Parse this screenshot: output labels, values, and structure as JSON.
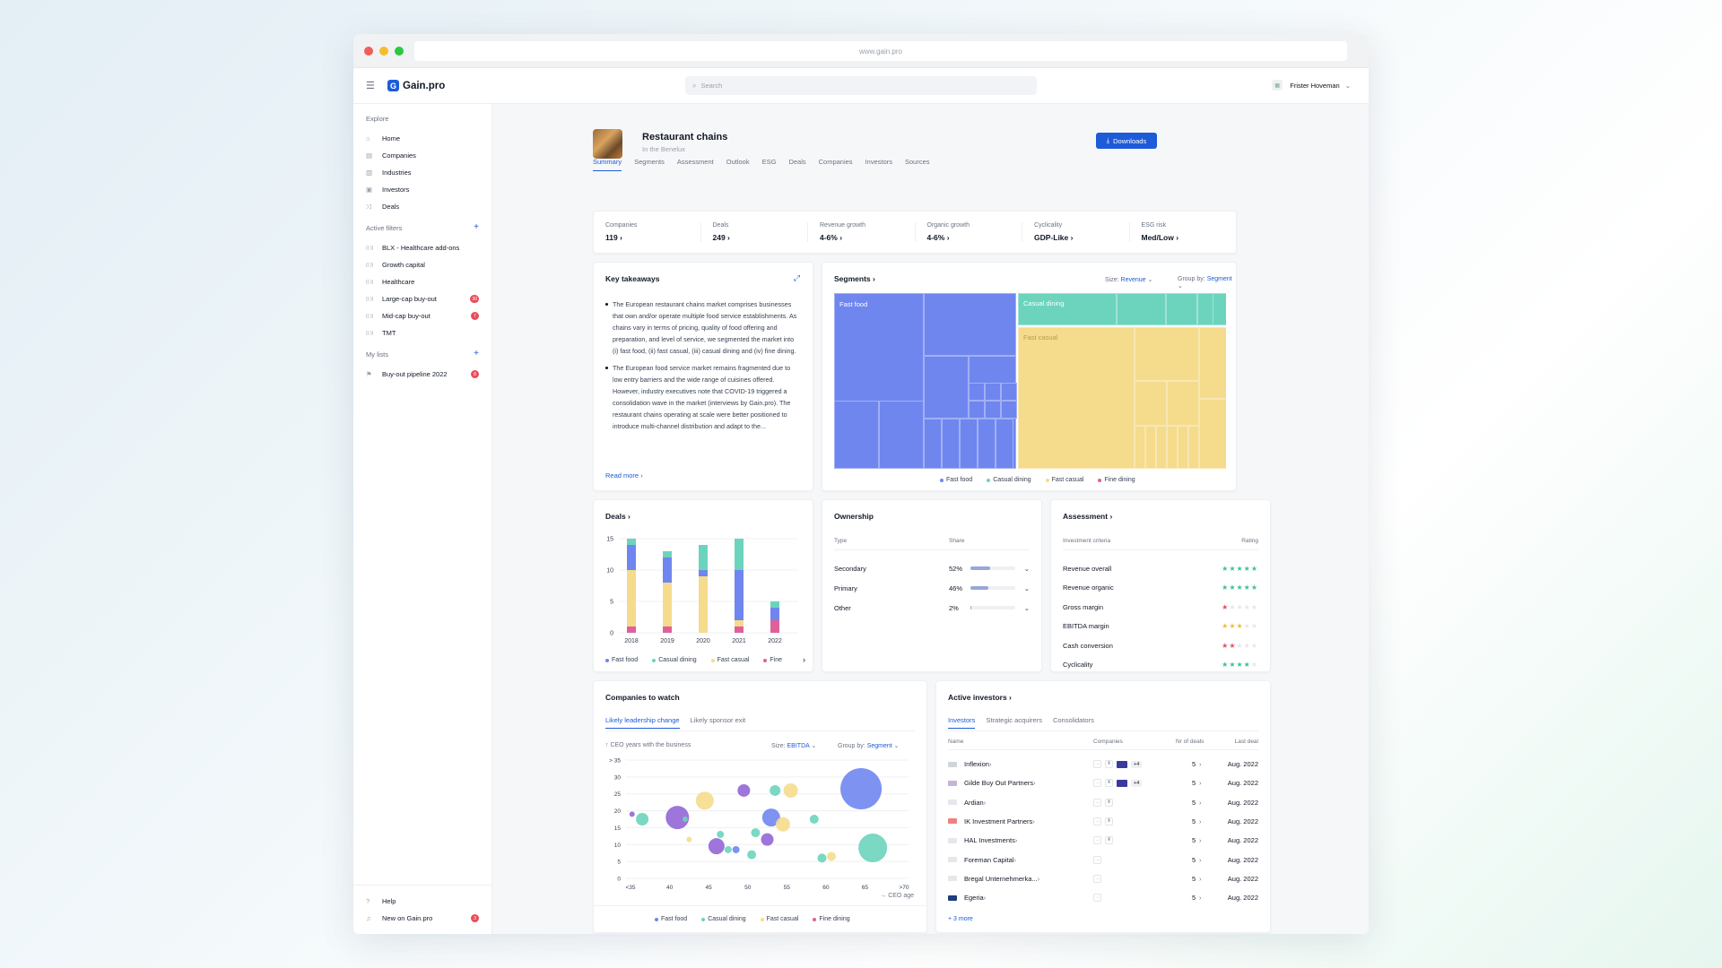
{
  "browser": {
    "url": "www.gain.pro"
  },
  "topbar": {
    "logo": "Gain.pro",
    "search_placeholder": "Search",
    "user": "Frister Hoveman"
  },
  "sidebar": {
    "explore_label": "Explore",
    "explore": [
      {
        "label": "Home",
        "icon": "home-icon"
      },
      {
        "label": "Companies",
        "icon": "building-icon"
      },
      {
        "label": "Industries",
        "icon": "industry-icon"
      },
      {
        "label": "Investors",
        "icon": "briefcase-icon"
      },
      {
        "label": "Deals",
        "icon": "shuffle-icon"
      }
    ],
    "filters_label": "Active filters",
    "filters": [
      {
        "label": "BLX - Healthcare add-ons",
        "badge": ""
      },
      {
        "label": "Growth capital",
        "badge": ""
      },
      {
        "label": "Healthcare",
        "badge": ""
      },
      {
        "label": "Large-cap buy-out",
        "badge": "30"
      },
      {
        "label": "Mid-cap buy-out",
        "badge": "7"
      },
      {
        "label": "TMT",
        "badge": ""
      }
    ],
    "lists_label": "My lists",
    "lists": [
      {
        "label": "Buy-out pipeline 2022",
        "badge": "8"
      }
    ],
    "help": "Help",
    "new": "New on Gain.pro",
    "new_badge": "3"
  },
  "header": {
    "title": "Restaurant chains",
    "subtitle": "In the Benelux",
    "downloads": "Downloads",
    "tabs": [
      "Summary",
      "Segments",
      "Assessment",
      "Outlook",
      "ESG",
      "Deals",
      "Companies",
      "Investors",
      "Sources"
    ]
  },
  "kpis": [
    {
      "label": "Companies",
      "value": "119"
    },
    {
      "label": "Deals",
      "value": "249"
    },
    {
      "label": "Revenue growth",
      "value": "4-6%"
    },
    {
      "label": "Organic growth",
      "value": "4-6%"
    },
    {
      "label": "Cyclicality",
      "value": "GDP-Like"
    },
    {
      "label": "ESG risk",
      "value": "Med/Low"
    }
  ],
  "takeaways": {
    "title": "Key takeaways",
    "read_more": "Read more",
    "items": [
      "The European restaurant chains market comprises businesses that own and/or operate multiple food service establishments. As chains vary in terms of pricing, quality of food offering and preparation, and level of service, we segmented the market into (i) fast food, (ii) fast casual, (iii) casual dining and (iv) fine dining.",
      "The European food service market remains fragmented due to low entry barriers and the wide range of cuisines offered. However, industry executives note that COVID-19 triggered a consolidation wave in the market (interviews by Gain.pro). The restaurant chains operating at scale were better positioned to introduce multi-channel distribution and adapt to the..."
    ]
  },
  "segments": {
    "title": "Segments",
    "size_label": "Size:",
    "size_value": "Revenue",
    "group_label": "Group by:",
    "group_value": "Segment",
    "labels": {
      "fast_food": "Fast food",
      "fast_casual": "Fast casual",
      "casual_dining": "Casual dining"
    },
    "legend": [
      {
        "name": "Fast food",
        "color": "#6f86ef"
      },
      {
        "name": "Casual dining",
        "color": "#6cd4bd"
      },
      {
        "name": "Fast casual",
        "color": "#f5db8c"
      },
      {
        "name": "Fine dining",
        "color": "#e0609a"
      }
    ]
  },
  "colors": {
    "fast_food": "#6f86ef",
    "casual_dining": "#6cd4bd",
    "fast_casual": "#f5db8c",
    "fine_dining": "#e0609a",
    "purple": "#9466d6",
    "accent": "#1d5bd8"
  },
  "chart_data": [
    {
      "type": "bar",
      "title": "Deals",
      "categories": [
        "2018",
        "2019",
        "2020",
        "2021",
        "2022"
      ],
      "ylim": [
        0,
        15
      ],
      "yticks": [
        0,
        5,
        10,
        15
      ],
      "series": [
        {
          "name": "Fast food",
          "values": [
            4,
            4,
            1,
            8,
            2
          ]
        },
        {
          "name": "Casual dining",
          "values": [
            1,
            1,
            4,
            5,
            1
          ]
        },
        {
          "name": "Fast casual",
          "values": [
            9,
            7,
            9,
            1,
            0
          ]
        },
        {
          "name": "Fine dining",
          "values": [
            1,
            1,
            0,
            1,
            2
          ]
        }
      ],
      "legend": [
        "Fast food",
        "Casual dining",
        "Fast casual",
        "Fine"
      ]
    },
    {
      "type": "scatter",
      "title": "Companies to watch",
      "ylabel": "CEO years with the business",
      "xlabel": "CEO age",
      "xticks": [
        "<35",
        "40",
        "45",
        "50",
        "55",
        "60",
        "65",
        ">70"
      ],
      "yticks": [
        "0",
        "5",
        "10",
        "15",
        "20",
        "25",
        "30",
        "> 35"
      ],
      "legend": [
        "Fast food",
        "Casual dining",
        "Fast casual",
        "Fine dining"
      ],
      "points": [
        {
          "x": 35.2,
          "y": 19,
          "r": 3,
          "c": "purple"
        },
        {
          "x": 36.5,
          "y": 17.5,
          "r": 7,
          "c": "casual_dining"
        },
        {
          "x": 41,
          "y": 18,
          "r": 13,
          "c": "purple"
        },
        {
          "x": 42,
          "y": 17.5,
          "r": 3,
          "c": "casual_dining"
        },
        {
          "x": 42.5,
          "y": 11.5,
          "r": 3,
          "c": "fast_casual"
        },
        {
          "x": 44.5,
          "y": 23,
          "r": 10,
          "c": "fast_casual"
        },
        {
          "x": 46,
          "y": 9.5,
          "r": 9,
          "c": "purple"
        },
        {
          "x": 46.5,
          "y": 13,
          "r": 4,
          "c": "casual_dining"
        },
        {
          "x": 47.5,
          "y": 8.5,
          "r": 4,
          "c": "casual_dining"
        },
        {
          "x": 48.5,
          "y": 8.5,
          "r": 4,
          "c": "fast_food"
        },
        {
          "x": 49.5,
          "y": 26,
          "r": 7,
          "c": "purple"
        },
        {
          "x": 50.5,
          "y": 7,
          "r": 5,
          "c": "casual_dining"
        },
        {
          "x": 51,
          "y": 13.5,
          "r": 5,
          "c": "casual_dining"
        },
        {
          "x": 52.5,
          "y": 11.5,
          "r": 7,
          "c": "purple"
        },
        {
          "x": 53,
          "y": 18,
          "r": 10,
          "c": "fast_food"
        },
        {
          "x": 53.5,
          "y": 26,
          "r": 6,
          "c": "casual_dining"
        },
        {
          "x": 54.5,
          "y": 16,
          "r": 8,
          "c": "fast_casual"
        },
        {
          "x": 55.5,
          "y": 26,
          "r": 8,
          "c": "fast_casual"
        },
        {
          "x": 58.5,
          "y": 17.5,
          "r": 5,
          "c": "casual_dining"
        },
        {
          "x": 59.5,
          "y": 6,
          "r": 5,
          "c": "casual_dining"
        },
        {
          "x": 60.7,
          "y": 6.5,
          "r": 5,
          "c": "fast_casual"
        },
        {
          "x": 64.5,
          "y": 26.5,
          "r": 23,
          "c": "fast_food"
        },
        {
          "x": 66,
          "y": 9,
          "r": 16,
          "c": "casual_dining"
        }
      ]
    }
  ],
  "ownership": {
    "title": "Ownership",
    "col_type": "Type",
    "col_share": "Share",
    "rows": [
      {
        "type": "Secondary",
        "share": "52%",
        "fill": 0.52
      },
      {
        "type": "Primary",
        "share": "46%",
        "fill": 0.46
      },
      {
        "type": "Other",
        "share": "2%",
        "fill": 0.02
      }
    ]
  },
  "assessment": {
    "title": "Assessment",
    "col_criteria": "Investment criteria",
    "col_rating": "Rating",
    "rows": [
      {
        "name": "Revenue overall",
        "stars": 5,
        "color": "#3fbf98"
      },
      {
        "name": "Revenue organic",
        "stars": 5,
        "color": "#3fbf98"
      },
      {
        "name": "Gross margin",
        "stars": 1,
        "color": "#ea4b5a"
      },
      {
        "name": "EBITDA margin",
        "stars": 3,
        "color": "#f2b93b"
      },
      {
        "name": "Cash conversion",
        "stars": 2,
        "color": "#ea4b5a"
      },
      {
        "name": "Cyclicality",
        "stars": 4,
        "color": "#3fbf98"
      }
    ]
  },
  "watch": {
    "title": "Companies to watch",
    "tabs": [
      "Likely leadership change",
      "Likely sponsor exit"
    ],
    "size_label": "Size:",
    "size_value": "EBITDA",
    "group_label": "Group by:",
    "group_value": "Segment",
    "y_title": "CEO years with the business",
    "x_title": "CEO age"
  },
  "investors": {
    "title": "Active investors",
    "tabs": [
      "Investors",
      "Strategic acquirers",
      "Consolidators"
    ],
    "cols": {
      "name": "Name",
      "companies": "Companies",
      "deals": "Nr of deals",
      "last": "Last deal"
    },
    "rows": [
      {
        "name": "Inflexion",
        "deals": "5",
        "last": "Aug. 2022",
        "more": "+4"
      },
      {
        "name": "Gilde Buy Out Partners",
        "deals": "5",
        "last": "Aug. 2022",
        "more": "+4"
      },
      {
        "name": "Ardian",
        "deals": "5",
        "last": "Aug. 2022",
        "more": ""
      },
      {
        "name": "IK Investment Partners",
        "deals": "5",
        "last": "Aug. 2022",
        "more": ""
      },
      {
        "name": "HAL Investments",
        "deals": "5",
        "last": "Aug. 2022",
        "more": ""
      },
      {
        "name": "Foreman Capital",
        "deals": "5",
        "last": "Aug. 2022",
        "more": ""
      },
      {
        "name": "Bregal Unternehmerka...",
        "deals": "5",
        "last": "Aug. 2022",
        "more": ""
      },
      {
        "name": "Egeria",
        "deals": "5",
        "last": "Aug. 2022",
        "more": ""
      }
    ],
    "more": "+ 3 more"
  }
}
